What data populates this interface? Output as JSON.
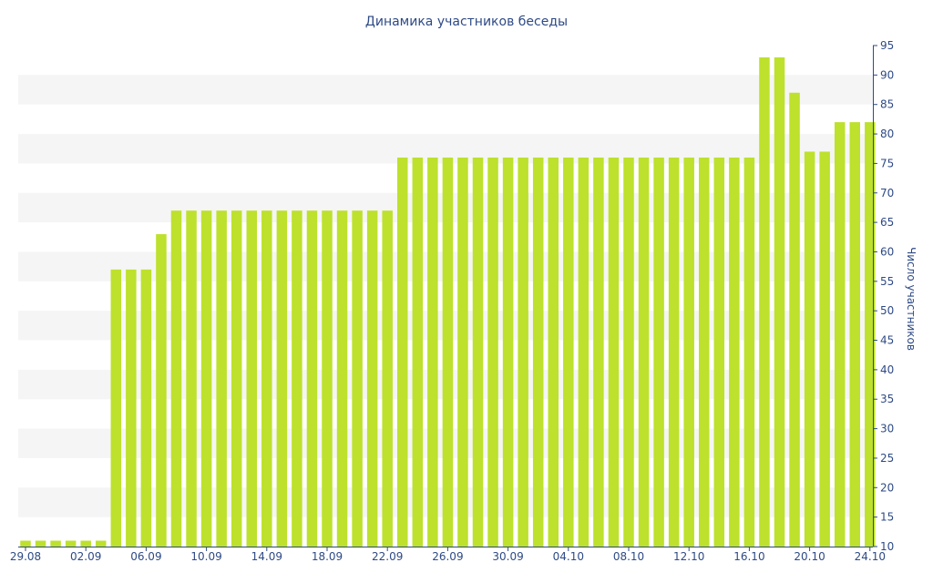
{
  "chart_data": {
    "type": "bar",
    "title": "Динамика участников беседы",
    "xlabel": "",
    "ylabel": "Число участников",
    "ylim": [
      10,
      95
    ],
    "y_ticks": [
      10,
      15,
      20,
      25,
      30,
      35,
      40,
      45,
      50,
      55,
      60,
      65,
      70,
      75,
      80,
      85,
      90,
      95
    ],
    "y_axis_side": "right",
    "grid": "alternating horizontal bands",
    "bar_color": "#bde12c",
    "band_color": "#f5f5f5",
    "text_color": "#2e4a86",
    "axis_color": "#2e4a86",
    "x_ticks": [
      {
        "label": "29.08",
        "index": 0
      },
      {
        "label": "02.09",
        "index": 4
      },
      {
        "label": "06.09",
        "index": 8
      },
      {
        "label": "10.09",
        "index": 12
      },
      {
        "label": "14.09",
        "index": 16
      },
      {
        "label": "18.09",
        "index": 20
      },
      {
        "label": "22.09",
        "index": 24
      },
      {
        "label": "26.09",
        "index": 28
      },
      {
        "label": "30.09",
        "index": 32
      },
      {
        "label": "04.10",
        "index": 36
      },
      {
        "label": "08.10",
        "index": 40
      },
      {
        "label": "12.10",
        "index": 44
      },
      {
        "label": "16.10",
        "index": 48
      },
      {
        "label": "20.10",
        "index": 52
      },
      {
        "label": "24.10",
        "index": 56
      }
    ],
    "categories": [
      "29.08",
      "30.08",
      "31.08",
      "01.09",
      "02.09",
      "03.09",
      "04.09",
      "05.09",
      "06.09",
      "07.09",
      "08.09",
      "09.09",
      "10.09",
      "11.09",
      "12.09",
      "13.09",
      "14.09",
      "15.09",
      "16.09",
      "17.09",
      "18.09",
      "19.09",
      "20.09",
      "21.09",
      "22.09",
      "23.09",
      "24.09",
      "25.09",
      "26.09",
      "27.09",
      "28.09",
      "29.09",
      "30.09",
      "01.10",
      "02.10",
      "03.10",
      "04.10",
      "05.10",
      "06.10",
      "07.10",
      "08.10",
      "09.10",
      "10.10",
      "11.10",
      "12.10",
      "13.10",
      "14.10",
      "15.10",
      "16.10",
      "17.10",
      "18.10",
      "19.10",
      "20.10",
      "21.10",
      "22.10",
      "23.10",
      "24.10"
    ],
    "values": [
      11,
      11,
      11,
      11,
      11,
      11,
      57,
      57,
      57,
      63,
      67,
      67,
      67,
      67,
      67,
      67,
      67,
      67,
      67,
      67,
      67,
      67,
      67,
      67,
      67,
      76,
      76,
      76,
      76,
      76,
      76,
      76,
      76,
      76,
      76,
      76,
      76,
      76,
      76,
      76,
      76,
      76,
      76,
      76,
      76,
      76,
      76,
      76,
      76,
      93,
      93,
      87,
      77,
      77,
      82,
      82,
      82
    ]
  }
}
